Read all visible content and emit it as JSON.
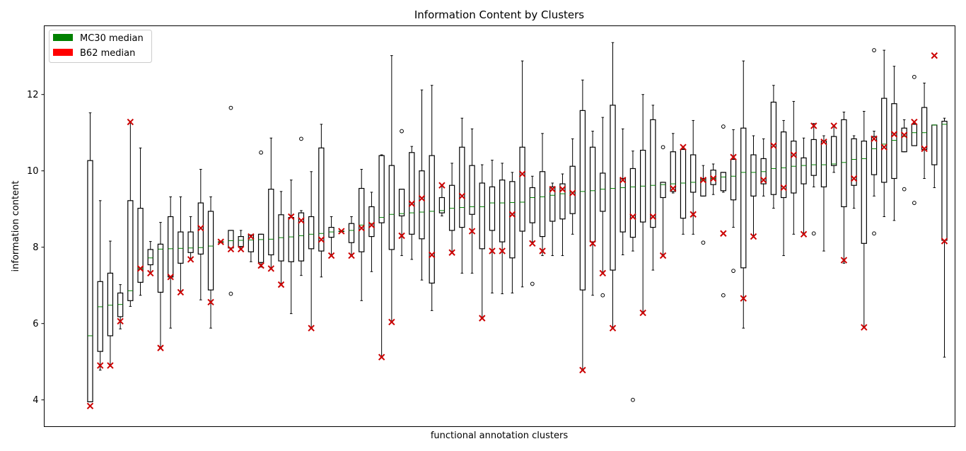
{
  "chart_data": {
    "type": "box",
    "title": "Information Content by Clusters",
    "xlabel": "functional annotation clusters",
    "ylabel": "information content",
    "ylim": [
      3.3,
      13.8
    ],
    "yticks": [
      4,
      6,
      8,
      10,
      12
    ],
    "grid": false,
    "legend": {
      "placement": "top-left",
      "entries": [
        {
          "label": "MC30 median",
          "color": "#008000"
        },
        {
          "label": "B62 median",
          "color": "#ff0000"
        }
      ]
    },
    "colors": {
      "mc30_median": "#008000",
      "b62_marker": "#cc0000",
      "box": "#000000"
    },
    "boxes": [
      {
        "wl": 3.95,
        "q1": 3.95,
        "med": 5.68,
        "q3": 10.27,
        "wh": 11.52,
        "fliers": [],
        "b62": 3.84
      },
      {
        "wl": 4.78,
        "q1": 5.27,
        "med": 6.44,
        "q3": 7.1,
        "wh": 9.22,
        "fliers": [],
        "b62": 4.9
      },
      {
        "wl": 4.88,
        "q1": 5.68,
        "med": 6.48,
        "q3": 7.32,
        "wh": 8.16,
        "fliers": [],
        "b62": 4.9
      },
      {
        "wl": 5.86,
        "q1": 6.18,
        "med": 6.5,
        "q3": 6.8,
        "wh": 7.02,
        "fliers": [],
        "b62": 6.06
      },
      {
        "wl": 6.45,
        "q1": 6.6,
        "med": 6.86,
        "q3": 9.22,
        "wh": 11.27,
        "fliers": [],
        "b62": 11.28
      },
      {
        "wl": 6.74,
        "q1": 7.08,
        "med": 7.44,
        "q3": 9.02,
        "wh": 10.6,
        "fliers": [],
        "b62": 7.44
      },
      {
        "wl": 7.3,
        "q1": 7.54,
        "med": 7.72,
        "q3": 7.94,
        "wh": 8.15,
        "fliers": [],
        "b62": 7.32
      },
      {
        "wl": 5.36,
        "q1": 6.82,
        "med": 7.95,
        "q3": 8.08,
        "wh": 8.65,
        "fliers": [],
        "b62": 5.36
      },
      {
        "wl": 5.88,
        "q1": 7.22,
        "med": 7.96,
        "q3": 8.8,
        "wh": 9.32,
        "fliers": [],
        "b62": 7.22
      },
      {
        "wl": 6.8,
        "q1": 7.58,
        "med": 7.97,
        "q3": 8.4,
        "wh": 9.32,
        "fliers": [],
        "b62": 6.82
      },
      {
        "wl": 7.68,
        "q1": 7.86,
        "med": 7.98,
        "q3": 8.4,
        "wh": 8.8,
        "fliers": [],
        "b62": 7.68
      },
      {
        "wl": 6.62,
        "q1": 7.82,
        "med": 7.99,
        "q3": 9.16,
        "wh": 10.04,
        "fliers": [],
        "b62": 8.5
      },
      {
        "wl": 5.88,
        "q1": 6.88,
        "med": 8.03,
        "q3": 8.94,
        "wh": 9.32,
        "fliers": [],
        "b62": 6.56
      },
      {
        "wl": 8.14,
        "q1": 8.14,
        "med": 8.14,
        "q3": 8.14,
        "wh": 8.14,
        "fliers": [],
        "b62": 8.14
      },
      {
        "wl": 7.94,
        "q1": 7.98,
        "med": 8.17,
        "q3": 8.44,
        "wh": 8.44,
        "fliers": [
          11.65,
          6.78
        ],
        "b62": 7.95
      },
      {
        "wl": 7.94,
        "q1": 8.02,
        "med": 8.18,
        "q3": 8.28,
        "wh": 8.44,
        "fliers": [],
        "b62": 7.95
      },
      {
        "wl": 7.62,
        "q1": 7.88,
        "med": 8.19,
        "q3": 8.32,
        "wh": 8.32,
        "fliers": [],
        "b62": 8.28
      },
      {
        "wl": 7.48,
        "q1": 7.6,
        "med": 8.2,
        "q3": 8.34,
        "wh": 8.34,
        "fliers": [
          10.48
        ],
        "b62": 7.52
      },
      {
        "wl": 7.44,
        "q1": 7.8,
        "med": 8.21,
        "q3": 9.52,
        "wh": 10.86,
        "fliers": [],
        "b62": 7.44
      },
      {
        "wl": 7.02,
        "q1": 7.64,
        "med": 8.25,
        "q3": 8.85,
        "wh": 9.46,
        "fliers": [],
        "b62": 7.02
      },
      {
        "wl": 6.26,
        "q1": 7.62,
        "med": 8.27,
        "q3": 8.78,
        "wh": 9.76,
        "fliers": [],
        "b62": 8.8
      },
      {
        "wl": 7.26,
        "q1": 7.64,
        "med": 8.3,
        "q3": 8.9,
        "wh": 8.96,
        "fliers": [
          10.84
        ],
        "b62": 8.7
      },
      {
        "wl": 5.88,
        "q1": 7.96,
        "med": 8.34,
        "q3": 8.8,
        "wh": 9.98,
        "fliers": [],
        "b62": 5.88
      },
      {
        "wl": 7.22,
        "q1": 7.9,
        "med": 8.36,
        "q3": 10.6,
        "wh": 11.22,
        "fliers": [],
        "b62": 8.2
      },
      {
        "wl": 7.78,
        "q1": 8.26,
        "med": 8.4,
        "q3": 8.52,
        "wh": 8.8,
        "fliers": [],
        "b62": 7.78
      },
      {
        "wl": 8.42,
        "q1": 8.42,
        "med": 8.42,
        "q3": 8.42,
        "wh": 8.42,
        "fliers": [],
        "b62": 8.42
      },
      {
        "wl": 7.78,
        "q1": 8.12,
        "med": 8.44,
        "q3": 8.62,
        "wh": 8.8,
        "fliers": [],
        "b62": 7.78
      },
      {
        "wl": 6.6,
        "q1": 7.88,
        "med": 8.58,
        "q3": 9.54,
        "wh": 10.04,
        "fliers": [],
        "b62": 8.5
      },
      {
        "wl": 7.36,
        "q1": 8.28,
        "med": 8.62,
        "q3": 9.06,
        "wh": 9.44,
        "fliers": [],
        "b62": 8.58
      },
      {
        "wl": 5.12,
        "q1": 8.64,
        "med": 8.78,
        "q3": 10.4,
        "wh": 10.42,
        "fliers": [],
        "b62": 5.12
      },
      {
        "wl": 6.04,
        "q1": 7.94,
        "med": 8.86,
        "q3": 10.14,
        "wh": 13.02,
        "fliers": [],
        "b62": 6.04
      },
      {
        "wl": 7.78,
        "q1": 8.82,
        "med": 8.88,
        "q3": 9.52,
        "wh": 9.52,
        "fliers": [
          11.04
        ],
        "b62": 8.3
      },
      {
        "wl": 7.68,
        "q1": 8.34,
        "med": 8.9,
        "q3": 10.48,
        "wh": 10.64,
        "fliers": [],
        "b62": 9.14
      },
      {
        "wl": 7.14,
        "q1": 8.22,
        "med": 8.92,
        "q3": 10.0,
        "wh": 12.12,
        "fliers": [],
        "b62": 9.28
      },
      {
        "wl": 6.34,
        "q1": 7.06,
        "med": 8.94,
        "q3": 10.4,
        "wh": 12.24,
        "fliers": [],
        "b62": 7.8
      },
      {
        "wl": 8.82,
        "q1": 8.9,
        "med": 8.96,
        "q3": 9.3,
        "wh": 9.62,
        "fliers": [],
        "b62": 9.62
      },
      {
        "wl": 7.84,
        "q1": 8.44,
        "med": 9.02,
        "q3": 9.62,
        "wh": 10.2,
        "fliers": [],
        "b62": 7.86
      },
      {
        "wl": 7.32,
        "q1": 8.52,
        "med": 9.04,
        "q3": 10.62,
        "wh": 11.38,
        "fliers": [],
        "b62": 9.34
      },
      {
        "wl": 7.32,
        "q1": 8.86,
        "med": 9.06,
        "q3": 10.14,
        "wh": 11.1,
        "fliers": [],
        "b62": 8.42
      },
      {
        "wl": 6.14,
        "q1": 7.96,
        "med": 9.06,
        "q3": 9.68,
        "wh": 10.16,
        "fliers": [],
        "b62": 6.14
      },
      {
        "wl": 6.8,
        "q1": 8.44,
        "med": 9.16,
        "q3": 9.58,
        "wh": 10.28,
        "fliers": [],
        "b62": 7.9
      },
      {
        "wl": 6.78,
        "q1": 8.14,
        "med": 9.16,
        "q3": 9.76,
        "wh": 10.2,
        "fliers": [],
        "b62": 7.9
      },
      {
        "wl": 6.8,
        "q1": 7.72,
        "med": 9.17,
        "q3": 9.72,
        "wh": 9.96,
        "fliers": [],
        "b62": 8.86
      },
      {
        "wl": 6.96,
        "q1": 8.42,
        "med": 9.18,
        "q3": 10.62,
        "wh": 12.88,
        "fliers": [],
        "b62": 9.92
      },
      {
        "wl": 8.14,
        "q1": 8.64,
        "med": 9.3,
        "q3": 9.56,
        "wh": 9.86,
        "fliers": [
          7.04
        ],
        "b62": 8.1
      },
      {
        "wl": 7.78,
        "q1": 8.28,
        "med": 9.32,
        "q3": 9.98,
        "wh": 10.98,
        "fliers": [],
        "b62": 7.9
      },
      {
        "wl": 7.78,
        "q1": 8.68,
        "med": 9.36,
        "q3": 9.58,
        "wh": 9.68,
        "fliers": [],
        "b62": 9.52
      },
      {
        "wl": 7.78,
        "q1": 8.74,
        "med": 9.4,
        "q3": 9.66,
        "wh": 9.92,
        "fliers": [],
        "b62": 9.52
      },
      {
        "wl": 8.34,
        "q1": 8.88,
        "med": 9.44,
        "q3": 10.12,
        "wh": 10.84,
        "fliers": [],
        "b62": 9.42
      },
      {
        "wl": 4.78,
        "q1": 6.88,
        "med": 9.46,
        "q3": 11.58,
        "wh": 12.38,
        "fliers": [],
        "b62": 4.78
      },
      {
        "wl": 6.74,
        "q1": 8.14,
        "med": 9.48,
        "q3": 10.62,
        "wh": 11.04,
        "fliers": [],
        "b62": 8.1
      },
      {
        "wl": 7.32,
        "q1": 8.94,
        "med": 9.52,
        "q3": 9.94,
        "wh": 11.4,
        "fliers": [
          6.74
        ],
        "b62": 7.32
      },
      {
        "wl": 5.88,
        "q1": 7.4,
        "med": 9.54,
        "q3": 11.72,
        "wh": 13.36,
        "fliers": [],
        "b62": 5.88
      },
      {
        "wl": 7.8,
        "q1": 8.4,
        "med": 9.56,
        "q3": 9.8,
        "wh": 11.1,
        "fliers": [],
        "b62": 9.76
      },
      {
        "wl": 7.9,
        "q1": 8.26,
        "med": 9.58,
        "q3": 10.06,
        "wh": 10.52,
        "fliers": [
          4.0
        ],
        "b62": 8.8
      },
      {
        "wl": 6.28,
        "q1": 8.66,
        "med": 9.6,
        "q3": 10.54,
        "wh": 12.0,
        "fliers": [],
        "b62": 6.28
      },
      {
        "wl": 7.4,
        "q1": 8.52,
        "med": 9.62,
        "q3": 11.34,
        "wh": 11.72,
        "fliers": [],
        "b62": 8.8
      },
      {
        "wl": 7.78,
        "q1": 9.3,
        "med": 9.64,
        "q3": 9.7,
        "wh": 9.7,
        "fliers": [
          10.62
        ],
        "b62": 7.78
      },
      {
        "wl": 9.42,
        "q1": 9.46,
        "med": 9.66,
        "q3": 10.5,
        "wh": 10.98,
        "fliers": [],
        "b62": 9.54
      },
      {
        "wl": 8.34,
        "q1": 8.76,
        "med": 9.68,
        "q3": 10.56,
        "wh": 10.64,
        "fliers": [],
        "b62": 10.62
      },
      {
        "wl": 8.34,
        "q1": 9.44,
        "med": 9.7,
        "q3": 10.42,
        "wh": 11.32,
        "fliers": [],
        "b62": 8.86
      },
      {
        "wl": 9.34,
        "q1": 9.34,
        "med": 9.76,
        "q3": 9.8,
        "wh": 10.14,
        "fliers": [
          8.12
        ],
        "b62": 9.76
      },
      {
        "wl": 9.38,
        "q1": 9.64,
        "med": 9.8,
        "q3": 10.02,
        "wh": 10.18,
        "fliers": [],
        "b62": 9.8
      },
      {
        "wl": 9.44,
        "q1": 9.48,
        "med": 9.84,
        "q3": 9.96,
        "wh": 9.96,
        "fliers": [
          11.16,
          6.74
        ],
        "b62": 8.36
      },
      {
        "wl": 8.52,
        "q1": 9.24,
        "med": 9.86,
        "q3": 10.3,
        "wh": 11.08,
        "fliers": [
          7.38
        ],
        "b62": 10.36
      },
      {
        "wl": 5.88,
        "q1": 7.46,
        "med": 9.96,
        "q3": 11.12,
        "wh": 12.88,
        "fliers": [],
        "b62": 6.66
      },
      {
        "wl": 8.26,
        "q1": 9.34,
        "med": 9.96,
        "q3": 10.42,
        "wh": 10.92,
        "fliers": [],
        "b62": 8.28
      },
      {
        "wl": 9.34,
        "q1": 9.66,
        "med": 9.98,
        "q3": 10.32,
        "wh": 10.84,
        "fliers": [],
        "b62": 9.76
      },
      {
        "wl": 9.02,
        "q1": 9.38,
        "med": 10.06,
        "q3": 11.8,
        "wh": 12.24,
        "fliers": [],
        "b62": 10.66
      },
      {
        "wl": 7.78,
        "q1": 9.3,
        "med": 10.08,
        "q3": 11.02,
        "wh": 11.32,
        "fliers": [],
        "b62": 9.56
      },
      {
        "wl": 8.34,
        "q1": 9.42,
        "med": 10.12,
        "q3": 10.78,
        "wh": 11.82,
        "fliers": [],
        "b62": 10.42
      },
      {
        "wl": 8.34,
        "q1": 9.66,
        "med": 10.14,
        "q3": 10.34,
        "wh": 10.86,
        "fliers": [],
        "b62": 8.34
      },
      {
        "wl": 9.58,
        "q1": 9.88,
        "med": 10.16,
        "q3": 10.82,
        "wh": 11.24,
        "fliers": [
          8.36
        ],
        "b62": 11.18
      },
      {
        "wl": 7.9,
        "q1": 9.58,
        "med": 10.16,
        "q3": 10.78,
        "wh": 10.92,
        "fliers": [],
        "b62": 10.76
      },
      {
        "wl": 9.96,
        "q1": 10.14,
        "med": 10.18,
        "q3": 10.9,
        "wh": 11.18,
        "fliers": [],
        "b62": 11.18
      },
      {
        "wl": 7.58,
        "q1": 9.06,
        "med": 10.22,
        "q3": 11.34,
        "wh": 11.54,
        "fliers": [],
        "b62": 7.66
      },
      {
        "wl": 9.02,
        "q1": 9.62,
        "med": 10.3,
        "q3": 10.84,
        "wh": 10.92,
        "fliers": [],
        "b62": 9.8
      },
      {
        "wl": 5.9,
        "q1": 8.1,
        "med": 10.32,
        "q3": 10.78,
        "wh": 11.56,
        "fliers": [],
        "b62": 5.9
      },
      {
        "wl": 9.34,
        "q1": 9.9,
        "med": 10.58,
        "q3": 10.9,
        "wh": 11.04,
        "fliers": [
          13.16,
          8.36
        ],
        "b62": 10.84
      },
      {
        "wl": 8.8,
        "q1": 9.7,
        "med": 10.7,
        "q3": 11.9,
        "wh": 13.16,
        "fliers": [],
        "b62": 10.62
      },
      {
        "wl": 8.7,
        "q1": 9.8,
        "med": 10.8,
        "q3": 11.76,
        "wh": 12.74,
        "fliers": [],
        "b62": 10.96
      },
      {
        "wl": 10.5,
        "q1": 10.5,
        "med": 10.9,
        "q3": 11.12,
        "wh": 11.34,
        "fliers": [
          9.52
        ],
        "b62": 10.94
      },
      {
        "wl": 10.66,
        "q1": 10.66,
        "med": 11.0,
        "q3": 11.22,
        "wh": 11.26,
        "fliers": [
          12.46,
          9.16
        ],
        "b62": 11.28
      },
      {
        "wl": 9.8,
        "q1": 10.56,
        "med": 11.0,
        "q3": 11.66,
        "wh": 12.3,
        "fliers": [],
        "b62": 10.58
      },
      {
        "wl": 9.56,
        "q1": 10.16,
        "med": 11.2,
        "q3": 11.2,
        "wh": 11.2,
        "fliers": [],
        "b62": 13.02
      },
      {
        "wl": 5.12,
        "q1": 8.18,
        "med": 11.22,
        "q3": 11.3,
        "wh": 11.38,
        "fliers": [],
        "b62": 8.16
      }
    ]
  }
}
